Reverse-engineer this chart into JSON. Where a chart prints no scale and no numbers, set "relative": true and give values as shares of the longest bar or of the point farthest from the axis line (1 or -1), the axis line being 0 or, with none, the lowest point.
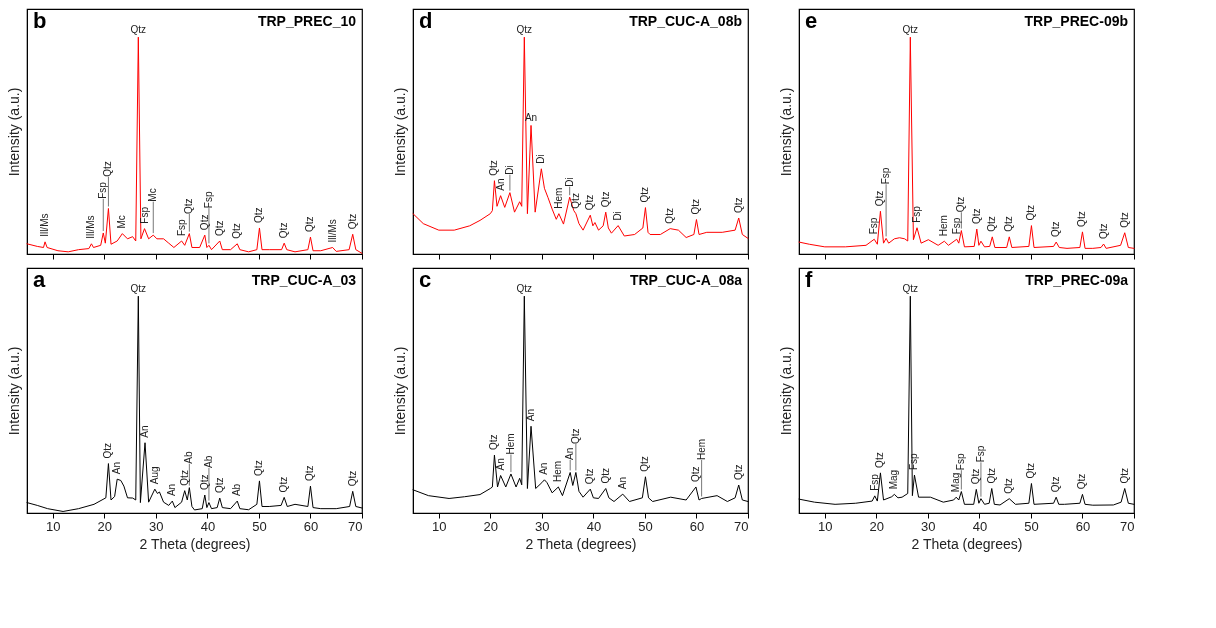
{
  "chart_data": [
    {
      "type": "line",
      "title": "TRP_PREC_10",
      "ylabel": "Intensity (a.u.)",
      "relative": true,
      "tick_labels": false,
      "xlim": [
        5,
        70
      ],
      "xticks": [
        10,
        20,
        30,
        40,
        50,
        60,
        70
      ],
      "x": [
        5,
        7,
        8.2,
        8.5,
        8.9,
        11,
        13,
        15,
        17,
        17.5,
        17.9,
        19.3,
        19.8,
        20.2,
        20.8,
        21.3,
        22.5,
        23.5,
        24.5,
        25.5,
        26.1,
        26.6,
        27.1,
        27.8,
        28.6,
        29.5,
        30.2,
        31.5,
        32.5,
        33.5,
        35,
        35.6,
        36.5,
        37,
        38.5,
        39.5,
        39.9,
        40.3,
        40.8,
        42.4,
        42.9,
        44.5,
        45.8,
        46.3,
        48,
        49.6,
        50.1,
        50.6,
        52,
        54.4,
        54.9,
        55.4,
        57,
        59.5,
        60,
        60.5,
        62,
        64.3,
        65,
        67.5,
        68.2,
        68.8,
        70
      ],
      "series": [
        {
          "color": "#ff0000",
          "values": [
            0.047,
            0.035,
            0.03,
            0.056,
            0.03,
            0.015,
            0.01,
            0.02,
            0.025,
            0.047,
            0.03,
            0.04,
            0.097,
            0.05,
            0.21,
            0.045,
            0.06,
            0.094,
            0.07,
            0.08,
            0.06,
            1.0,
            0.07,
            0.117,
            0.07,
            0.087,
            0.07,
            0.07,
            0.05,
            0.03,
            0.06,
            0.04,
            0.094,
            0.03,
            0.03,
            0.087,
            0.03,
            0.04,
            0.02,
            0.06,
            0.02,
            0.02,
            0.047,
            0.02,
            0.01,
            0.02,
            0.12,
            0.02,
            0.02,
            0.02,
            0.05,
            0.02,
            0.01,
            0.02,
            0.078,
            0.015,
            0.015,
            0.03,
            0.012,
            0.02,
            0.091,
            0.02,
            0.003
          ]
        }
      ],
      "annotations": [
        "b",
        {
          "text": "Ill/Ms",
          "x": 8.5,
          "y": 0.056
        },
        {
          "text": "Ill/Ms",
          "x": 17.5,
          "y": 0.047
        },
        {
          "text": "Fsp",
          "x": 19.8,
          "y": 0.097
        },
        {
          "text": "Qtz",
          "x": 20.8,
          "y": 0.21
        },
        {
          "text": "Mc",
          "x": 23.5,
          "y": 0.094
        },
        {
          "text": "Qtz",
          "x": 26.6,
          "y": 1.0
        },
        {
          "text": "Fsp",
          "x": 27.8,
          "y": 0.117
        },
        {
          "text": "Mc",
          "x": 29.5,
          "y": 0.087
        },
        {
          "text": "Fsp",
          "x": 35,
          "y": 0.06
        },
        {
          "text": "Qtz",
          "x": 36.5,
          "y": 0.094
        },
        {
          "text": "Qtz",
          "x": 39.5,
          "y": 0.087
        },
        {
          "text": "Fsp",
          "x": 40.3,
          "y": 0.04
        },
        {
          "text": "Qtz",
          "x": 42.4,
          "y": 0.06
        },
        {
          "text": "Qtz",
          "x": 45.8,
          "y": 0.047
        },
        {
          "text": "Qtz",
          "x": 50.1,
          "y": 0.12
        },
        {
          "text": "Qtz",
          "x": 54.9,
          "y": 0.05
        },
        {
          "text": "Qtz",
          "x": 60,
          "y": 0.078
        },
        {
          "text": "Ill/Ms",
          "x": 64.3,
          "y": 0.03
        },
        {
          "text": "Qtz",
          "x": 68.2,
          "y": 0.091
        }
      ]
    },
    {
      "type": "line",
      "title": "TRP_CUC-A_08b",
      "ylabel": "Intensity (a.u.)",
      "relative": true,
      "tick_labels": false,
      "xlim": [
        5,
        70
      ],
      "xticks": [
        10,
        20,
        30,
        40,
        50,
        60,
        70
      ],
      "x": [
        5,
        7,
        10,
        13,
        16,
        18,
        20,
        20.4,
        20.8,
        21.3,
        22,
        22.8,
        23.8,
        24.7,
        25.7,
        26.1,
        26.6,
        27.2,
        27.9,
        28.7,
        29.9,
        30.5,
        31.2,
        32,
        32.8,
        33.3,
        34.2,
        35.4,
        36.2,
        36.6,
        37.2,
        38,
        39.4,
        39.9,
        40.3,
        41,
        41.9,
        42.4,
        42.9,
        43.5,
        44.8,
        46,
        48,
        49.6,
        50.1,
        50.6,
        51,
        53,
        54.9,
        56.5,
        58,
        59.5,
        60,
        60.5,
        62,
        65,
        67.5,
        68.2,
        68.9,
        70
      ],
      "series": [
        {
          "color": "#ff0000",
          "values": [
            0.186,
            0.14,
            0.11,
            0.11,
            0.13,
            0.155,
            0.186,
            0.2,
            0.338,
            0.22,
            0.269,
            0.215,
            0.283,
            0.193,
            0.241,
            0.22,
            1.0,
            0.186,
            0.593,
            0.193,
            0.393,
            0.303,
            0.26,
            0.207,
            0.16,
            0.186,
            0.138,
            0.262,
            0.2,
            0.186,
            0.14,
            0.11,
            0.179,
            0.13,
            0.145,
            0.11,
            0.13,
            0.193,
            0.12,
            0.096,
            0.131,
            0.083,
            0.09,
            0.12,
            0.214,
            0.1,
            0.09,
            0.09,
            0.117,
            0.11,
            0.076,
            0.09,
            0.159,
            0.09,
            0.1,
            0.1,
            0.11,
            0.166,
            0.09,
            0.072
          ]
        }
      ],
      "annotations": [
        "d",
        {
          "text": "Qtz",
          "x": 20.8,
          "y": 0.338
        },
        {
          "text": "An",
          "x": 22,
          "y": 0.269
        },
        {
          "text": "Di",
          "x": 23.8,
          "y": 0.283
        },
        {
          "text": "Qtz",
          "x": 26.6,
          "y": 1.0
        },
        {
          "text": "An",
          "x": 27.9,
          "y": 0.593
        },
        {
          "text": "Di",
          "x": 29.9,
          "y": 0.393
        },
        {
          "text": "Hem",
          "x": 33.3,
          "y": 0.186
        },
        {
          "text": "Di",
          "x": 35.4,
          "y": 0.262
        },
        {
          "text": "Qtz",
          "x": 36.6,
          "y": 0.186
        },
        {
          "text": "Qtz",
          "x": 39.4,
          "y": 0.179
        },
        {
          "text": "Qtz",
          "x": 42.4,
          "y": 0.193
        },
        {
          "text": "Di",
          "x": 44.8,
          "y": 0.131
        },
        {
          "text": "Qtz",
          "x": 50.1,
          "y": 0.214
        },
        {
          "text": "Qtz",
          "x": 54.9,
          "y": 0.117
        },
        {
          "text": "Qtz",
          "x": 60,
          "y": 0.159
        },
        {
          "text": "Qtz",
          "x": 68.2,
          "y": 0.166
        }
      ]
    },
    {
      "type": "line",
      "title": "TRP_PREC-09b",
      "ylabel": "Intensity (a.u.)",
      "relative": true,
      "tick_labels": false,
      "xlim": [
        5,
        70
      ],
      "xticks": [
        10,
        20,
        30,
        40,
        50,
        60,
        70
      ],
      "x": [
        5,
        7,
        10,
        14,
        18,
        19.6,
        20.2,
        20.8,
        21.4,
        21.9,
        22.4,
        23.5,
        24.5,
        25.5,
        26.1,
        26.6,
        27.2,
        27.9,
        28.7,
        30.1,
        32,
        33.2,
        34,
        35.6,
        36,
        36.5,
        37.1,
        39,
        39.5,
        39.9,
        40.3,
        41,
        42,
        42.5,
        43,
        45.3,
        45.8,
        46.3,
        49.6,
        50.1,
        50.6,
        54.4,
        54.9,
        55.5,
        57,
        59.5,
        60,
        60.5,
        62,
        63.6,
        64.1,
        64.6,
        67.4,
        68.2,
        68.9,
        70
      ],
      "series": [
        {
          "color": "#ff0000",
          "values": [
            0.055,
            0.045,
            0.033,
            0.033,
            0.04,
            0.068,
            0.045,
            0.197,
            0.05,
            0.072,
            0.05,
            0.07,
            0.075,
            0.07,
            0.06,
            1.0,
            0.066,
            0.121,
            0.05,
            0.066,
            0.04,
            0.059,
            0.04,
            0.068,
            0.05,
            0.108,
            0.033,
            0.035,
            0.115,
            0.04,
            0.059,
            0.033,
            0.035,
            0.079,
            0.03,
            0.03,
            0.079,
            0.03,
            0.035,
            0.131,
            0.03,
            0.035,
            0.055,
            0.03,
            0.026,
            0.03,
            0.102,
            0.026,
            0.026,
            0.03,
            0.046,
            0.026,
            0.04,
            0.098,
            0.03,
            0.026
          ]
        }
      ],
      "annotations": [
        "e",
        {
          "text": "Fsp",
          "x": 19.6,
          "y": 0.068
        },
        {
          "text": "Qtz",
          "x": 20.8,
          "y": 0.197
        },
        {
          "text": "Fsp",
          "x": 21.9,
          "y": 0.072
        },
        {
          "text": "Qtz",
          "x": 26.6,
          "y": 1.0
        },
        {
          "text": "Fsp",
          "x": 27.9,
          "y": 0.121
        },
        {
          "text": "Hem",
          "x": 33.2,
          "y": 0.059
        },
        {
          "text": "Fsp",
          "x": 35.6,
          "y": 0.068
        },
        {
          "text": "Qtz",
          "x": 36.5,
          "y": 0.108
        },
        {
          "text": "Qtz",
          "x": 39.5,
          "y": 0.115
        },
        {
          "text": "Qtz",
          "x": 42.5,
          "y": 0.079
        },
        {
          "text": "Qtz",
          "x": 45.8,
          "y": 0.079
        },
        {
          "text": "Qtz",
          "x": 50.1,
          "y": 0.131
        },
        {
          "text": "Qtz",
          "x": 54.9,
          "y": 0.055
        },
        {
          "text": "Qtz",
          "x": 60,
          "y": 0.102
        },
        {
          "text": "Qtz",
          "x": 64.1,
          "y": 0.046
        },
        {
          "text": "Qtz",
          "x": 68.2,
          "y": 0.098
        }
      ]
    },
    {
      "type": "line",
      "title": "TRP_CUC-A_03",
      "xlabel": "2 Theta (degrees)",
      "ylabel": "Intensity (a.u.)",
      "relative": true,
      "tick_labels": "x",
      "xlim": [
        5,
        70
      ],
      "xticks": [
        10,
        20,
        30,
        40,
        50,
        60,
        70
      ],
      "x": [
        5,
        7,
        9,
        12,
        15,
        18,
        20.3,
        20.8,
        21.3,
        22,
        22.5,
        23.2,
        23.8,
        24.5,
        25.5,
        26.1,
        26.6,
        27.0,
        27.9,
        28.6,
        29.8,
        30.3,
        30.7,
        31.5,
        32.5,
        33.2,
        33.7,
        35,
        35.6,
        36.1,
        36.5,
        37,
        37.5,
        39,
        39.5,
        39.9,
        40.3,
        40.8,
        41.9,
        42.4,
        42.9,
        44.5,
        45.8,
        46.3,
        48,
        49.6,
        50.1,
        50.6,
        52,
        54.3,
        54.9,
        55.5,
        57,
        59.5,
        60,
        60.5,
        62,
        65,
        67.6,
        68.2,
        68.8,
        70
      ],
      "series": [
        {
          "color": "#000000",
          "values": [
            0.048,
            0.035,
            0.02,
            0.007,
            0.02,
            0.04,
            0.07,
            0.228,
            0.06,
            0.076,
            0.156,
            0.15,
            0.124,
            0.07,
            0.069,
            0.06,
            1.0,
            0.048,
            0.324,
            0.05,
            0.11,
            0.09,
            0.097,
            0.05,
            0.035,
            0.055,
            0.025,
            0.05,
            0.103,
            0.06,
            0.117,
            0.03,
            0.014,
            0.02,
            0.083,
            0.025,
            0.048,
            0.02,
            0.025,
            0.069,
            0.025,
            0.02,
            0.055,
            0.02,
            0.015,
            0.04,
            0.148,
            0.03,
            0.03,
            0.035,
            0.072,
            0.03,
            0.04,
            0.03,
            0.124,
            0.025,
            0.02,
            0.02,
            0.03,
            0.1,
            0.03,
            0.023
          ]
        }
      ],
      "annotations": [
        "a",
        {
          "text": "Qtz",
          "x": 20.8,
          "y": 0.228
        },
        {
          "text": "An",
          "x": 22.5,
          "y": 0.156
        },
        {
          "text": "Qtz",
          "x": 26.6,
          "y": 1.0
        },
        {
          "text": "An",
          "x": 27.9,
          "y": 0.324
        },
        {
          "text": "Aug",
          "x": 29.8,
          "y": 0.11
        },
        {
          "text": "An",
          "x": 33.2,
          "y": 0.055
        },
        {
          "text": "Qtz",
          "x": 35.6,
          "y": 0.103
        },
        {
          "text": "Ab",
          "x": 36.5,
          "y": 0.117
        },
        {
          "text": "Qtz",
          "x": 39.5,
          "y": 0.083
        },
        {
          "text": "Ab",
          "x": 40.3,
          "y": 0.048
        },
        {
          "text": "Qtz",
          "x": 42.4,
          "y": 0.069
        },
        {
          "text": "Ab",
          "x": 45.8,
          "y": 0.055
        },
        {
          "text": "Qtz",
          "x": 50.1,
          "y": 0.148
        },
        {
          "text": "Qtz",
          "x": 54.9,
          "y": 0.072
        },
        {
          "text": "Qtz",
          "x": 60,
          "y": 0.124
        },
        {
          "text": "Qtz",
          "x": 68.2,
          "y": 0.1
        }
      ]
    },
    {
      "type": "line",
      "title": "TRP_CUC-A_08a",
      "xlabel": "2 Theta (degrees)",
      "ylabel": "Intensity (a.u.)",
      "relative": true,
      "tick_labels": "x",
      "xlim": [
        5,
        70
      ],
      "xticks": [
        10,
        20,
        30,
        40,
        50,
        60,
        70
      ],
      "x": [
        5,
        8,
        12,
        15,
        18,
        20,
        20.4,
        20.8,
        21.4,
        22,
        23,
        24,
        25,
        25.7,
        26.1,
        26.6,
        27.2,
        27.9,
        28.8,
        30,
        30.5,
        31,
        32,
        33.2,
        34,
        35.5,
        36,
        36.6,
        37.2,
        38,
        39.4,
        40,
        41,
        42.4,
        43,
        44,
        45.7,
        47,
        49.5,
        50.1,
        50.7,
        51.5,
        55,
        58,
        59.9,
        60.5,
        61,
        64,
        66,
        67.5,
        68.2,
        68.9,
        70
      ],
      "series": [
        {
          "color": "#000000",
          "values": [
            0.107,
            0.08,
            0.067,
            0.075,
            0.085,
            0.113,
            0.12,
            0.267,
            0.12,
            0.173,
            0.12,
            0.18,
            0.12,
            0.16,
            0.13,
            1.0,
            0.113,
            0.4,
            0.113,
            0.14,
            0.153,
            0.14,
            0.093,
            0.12,
            0.08,
            0.187,
            0.127,
            0.187,
            0.1,
            0.073,
            0.11,
            0.07,
            0.067,
            0.113,
            0.07,
            0.053,
            0.087,
            0.053,
            0.07,
            0.167,
            0.07,
            0.053,
            0.073,
            0.06,
            0.12,
            0.06,
            0.067,
            0.08,
            0.053,
            0.07,
            0.129,
            0.06,
            0.053
          ]
        }
      ],
      "annotations": [
        "c",
        {
          "text": "Qtz",
          "x": 20.8,
          "y": 0.267
        },
        {
          "text": "An",
          "x": 22,
          "y": 0.173
        },
        {
          "text": "Hem",
          "x": 24,
          "y": 0.18
        },
        {
          "text": "Qtz",
          "x": 26.6,
          "y": 1.0
        },
        {
          "text": "An",
          "x": 27.9,
          "y": 0.4
        },
        {
          "text": "An",
          "x": 30.5,
          "y": 0.153
        },
        {
          "text": "Hem",
          "x": 33.2,
          "y": 0.12
        },
        {
          "text": "An",
          "x": 35.5,
          "y": 0.187
        },
        {
          "text": "Qtz",
          "x": 36.6,
          "y": 0.187
        },
        {
          "text": "Qtz",
          "x": 39.4,
          "y": 0.11
        },
        {
          "text": "Qtz",
          "x": 42.4,
          "y": 0.113
        },
        {
          "text": "An",
          "x": 45.7,
          "y": 0.087
        },
        {
          "text": "Qtz",
          "x": 50.1,
          "y": 0.167
        },
        {
          "text": "Qtz",
          "x": 59.9,
          "y": 0.12
        },
        {
          "text": "Hem",
          "x": 61,
          "y": 0.067
        },
        {
          "text": "Qtz",
          "x": 68.2,
          "y": 0.129
        }
      ]
    },
    {
      "type": "line",
      "title": "TRP_PREC-09a",
      "xlabel": "2 Theta (degrees)",
      "ylabel": "Intensity (a.u.)",
      "relative": true,
      "tick_labels": "x",
      "xlim": [
        5,
        70
      ],
      "xticks": [
        10,
        20,
        30,
        40,
        50,
        60,
        70
      ],
      "x": [
        5,
        8,
        12,
        16,
        19.2,
        19.7,
        20.2,
        20.8,
        21.4,
        23,
        23.5,
        24.2,
        25,
        26.1,
        26.6,
        27.0,
        27.4,
        28.2,
        30.5,
        33,
        35,
        35.5,
        36,
        36.5,
        37.1,
        38.9,
        39.4,
        39.9,
        40.3,
        41,
        41.9,
        42.4,
        42.9,
        44,
        45.8,
        47,
        49.6,
        50.1,
        50.6,
        54.4,
        54.9,
        55.4,
        56.5,
        59.5,
        60,
        60.5,
        62,
        66,
        67.5,
        68.2,
        68.9,
        70
      ],
      "series": [
        {
          "color": "#000000",
          "values": [
            0.064,
            0.05,
            0.04,
            0.045,
            0.055,
            0.079,
            0.055,
            0.185,
            0.06,
            0.075,
            0.086,
            0.07,
            0.073,
            0.09,
            1.0,
            0.08,
            0.175,
            0.073,
            0.073,
            0.05,
            0.06,
            0.073,
            0.06,
            0.099,
            0.04,
            0.04,
            0.109,
            0.045,
            0.066,
            0.04,
            0.045,
            0.113,
            0.04,
            0.037,
            0.066,
            0.04,
            0.045,
            0.136,
            0.04,
            0.045,
            0.073,
            0.04,
            0.04,
            0.045,
            0.086,
            0.04,
            0.036,
            0.037,
            0.05,
            0.113,
            0.045,
            0.04
          ]
        }
      ],
      "annotations": [
        "f",
        {
          "text": "Fsp",
          "x": 19.7,
          "y": 0.079
        },
        {
          "text": "Qtz",
          "x": 20.8,
          "y": 0.185
        },
        {
          "text": "Mag",
          "x": 23.5,
          "y": 0.086
        },
        {
          "text": "Qtz",
          "x": 26.6,
          "y": 1.0
        },
        {
          "text": "Fsp",
          "x": 27.4,
          "y": 0.175
        },
        {
          "text": "Mag",
          "x": 35.5,
          "y": 0.073
        },
        {
          "text": "Fsp",
          "x": 36.5,
          "y": 0.099
        },
        {
          "text": "Qtz",
          "x": 39.4,
          "y": 0.109
        },
        {
          "text": "Fsp",
          "x": 40.3,
          "y": 0.066
        },
        {
          "text": "Qtz",
          "x": 42.4,
          "y": 0.113
        },
        {
          "text": "Qtz",
          "x": 45.8,
          "y": 0.066
        },
        {
          "text": "Qtz",
          "x": 50.1,
          "y": 0.136
        },
        {
          "text": "Qtz",
          "x": 54.9,
          "y": 0.073
        },
        {
          "text": "Qtz",
          "x": 60,
          "y": 0.086
        },
        {
          "text": "Qtz",
          "x": 68.2,
          "y": 0.113
        }
      ]
    }
  ]
}
